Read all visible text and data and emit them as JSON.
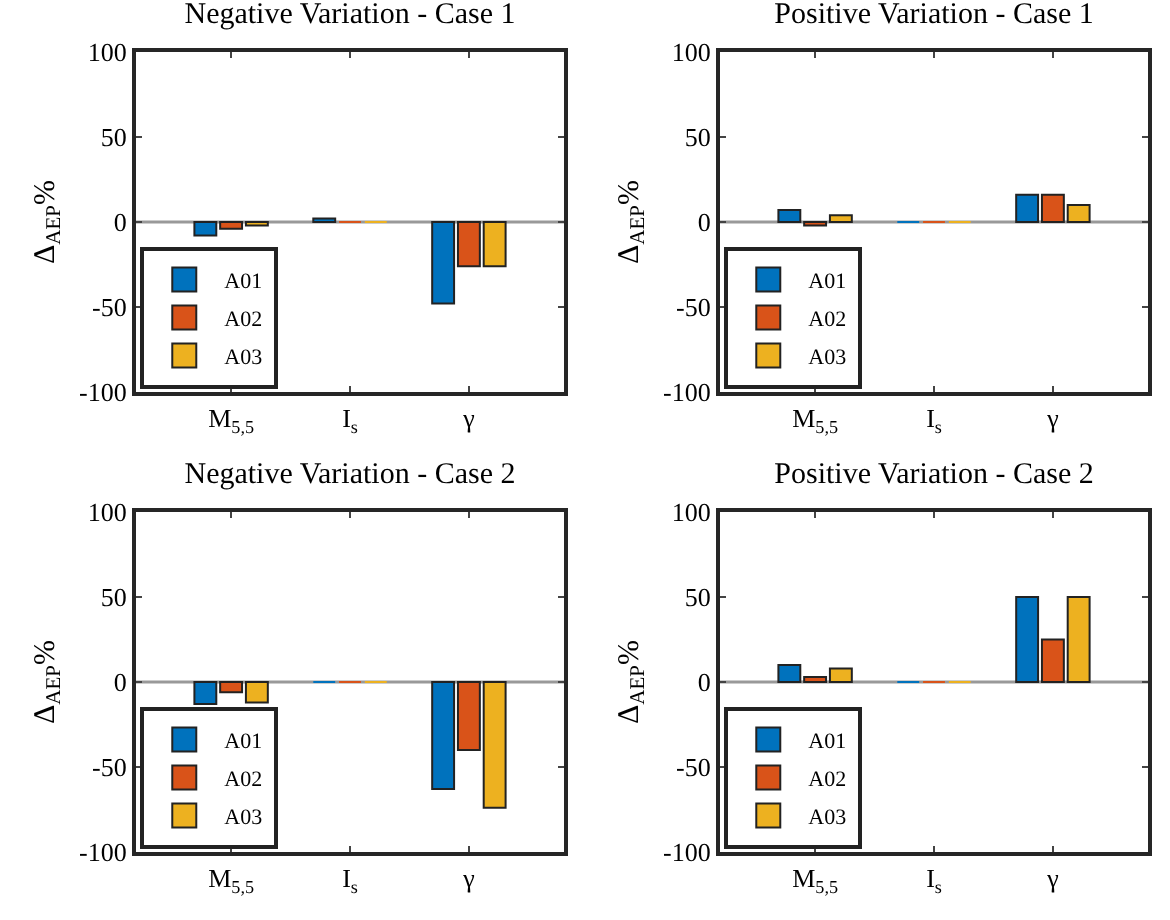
{
  "chart_data": [
    {
      "type": "bar",
      "title": "Negative Variation - Case 1",
      "ylabel": "Δ$_{AEP}$%",
      "categories": [
        "M$_{5,5}$",
        "I$_{s}$",
        "γ"
      ],
      "series": [
        {
          "name": "A01",
          "color": "#0072bd",
          "values": [
            -8,
            2,
            -48
          ]
        },
        {
          "name": "A02",
          "color": "#d95319",
          "values": [
            -4,
            0,
            -26
          ]
        },
        {
          "name": "A03",
          "color": "#edb120",
          "values": [
            -2,
            0,
            -26
          ]
        }
      ],
      "ylim": [
        -100,
        100
      ],
      "yticks": [
        -100,
        -50,
        0,
        50,
        100
      ],
      "ref_lines": [
        {
          "axis": "y",
          "value": 0,
          "color": "#999999"
        }
      ],
      "legend": "bottom left"
    },
    {
      "type": "bar",
      "title": "Positive Variation - Case 1",
      "ylabel": "Δ$_{AEP}$%",
      "categories": [
        "M$_{5,5}$",
        "I$_{s}$",
        "γ"
      ],
      "series": [
        {
          "name": "A01",
          "color": "#0072bd",
          "values": [
            7,
            0,
            16
          ]
        },
        {
          "name": "A02",
          "color": "#d95319",
          "values": [
            -2,
            0,
            16
          ]
        },
        {
          "name": "A03",
          "color": "#edb120",
          "values": [
            4,
            0,
            10
          ]
        }
      ],
      "ylim": [
        -100,
        100
      ],
      "yticks": [
        -100,
        -50,
        0,
        50,
        100
      ],
      "ref_lines": [
        {
          "axis": "y",
          "value": 0,
          "color": "#999999"
        }
      ],
      "legend": "bottom left"
    },
    {
      "type": "bar",
      "title": "Negative Variation - Case 2",
      "ylabel": "Δ$_{AEP}$%",
      "categories": [
        "M$_{5,5}$",
        "I$_{s}$",
        "γ"
      ],
      "series": [
        {
          "name": "A01",
          "color": "#0072bd",
          "values": [
            -13,
            0,
            -63
          ]
        },
        {
          "name": "A02",
          "color": "#d95319",
          "values": [
            -6,
            0,
            -40
          ]
        },
        {
          "name": "A03",
          "color": "#edb120",
          "values": [
            -12,
            0,
            -74
          ]
        }
      ],
      "ylim": [
        -100,
        100
      ],
      "yticks": [
        -100,
        -50,
        0,
        50,
        100
      ],
      "ref_lines": [
        {
          "axis": "y",
          "value": 0,
          "color": "#999999"
        }
      ],
      "legend": "bottom left"
    },
    {
      "type": "bar",
      "title": "Positive Variation - Case 2",
      "ylabel": "Δ$_{AEP}$%",
      "categories": [
        "M$_{5,5}$",
        "I$_{s}$",
        "γ"
      ],
      "series": [
        {
          "name": "A01",
          "color": "#0072bd",
          "values": [
            10,
            0,
            50
          ]
        },
        {
          "name": "A02",
          "color": "#d95319",
          "values": [
            3,
            0,
            25
          ]
        },
        {
          "name": "A03",
          "color": "#edb120",
          "values": [
            8,
            0,
            50
          ]
        }
      ],
      "ylim": [
        -100,
        100
      ],
      "yticks": [
        -100,
        -50,
        0,
        50,
        100
      ],
      "ref_lines": [
        {
          "axis": "y",
          "value": 0,
          "color": "#999999"
        }
      ],
      "legend": "bottom left"
    }
  ]
}
